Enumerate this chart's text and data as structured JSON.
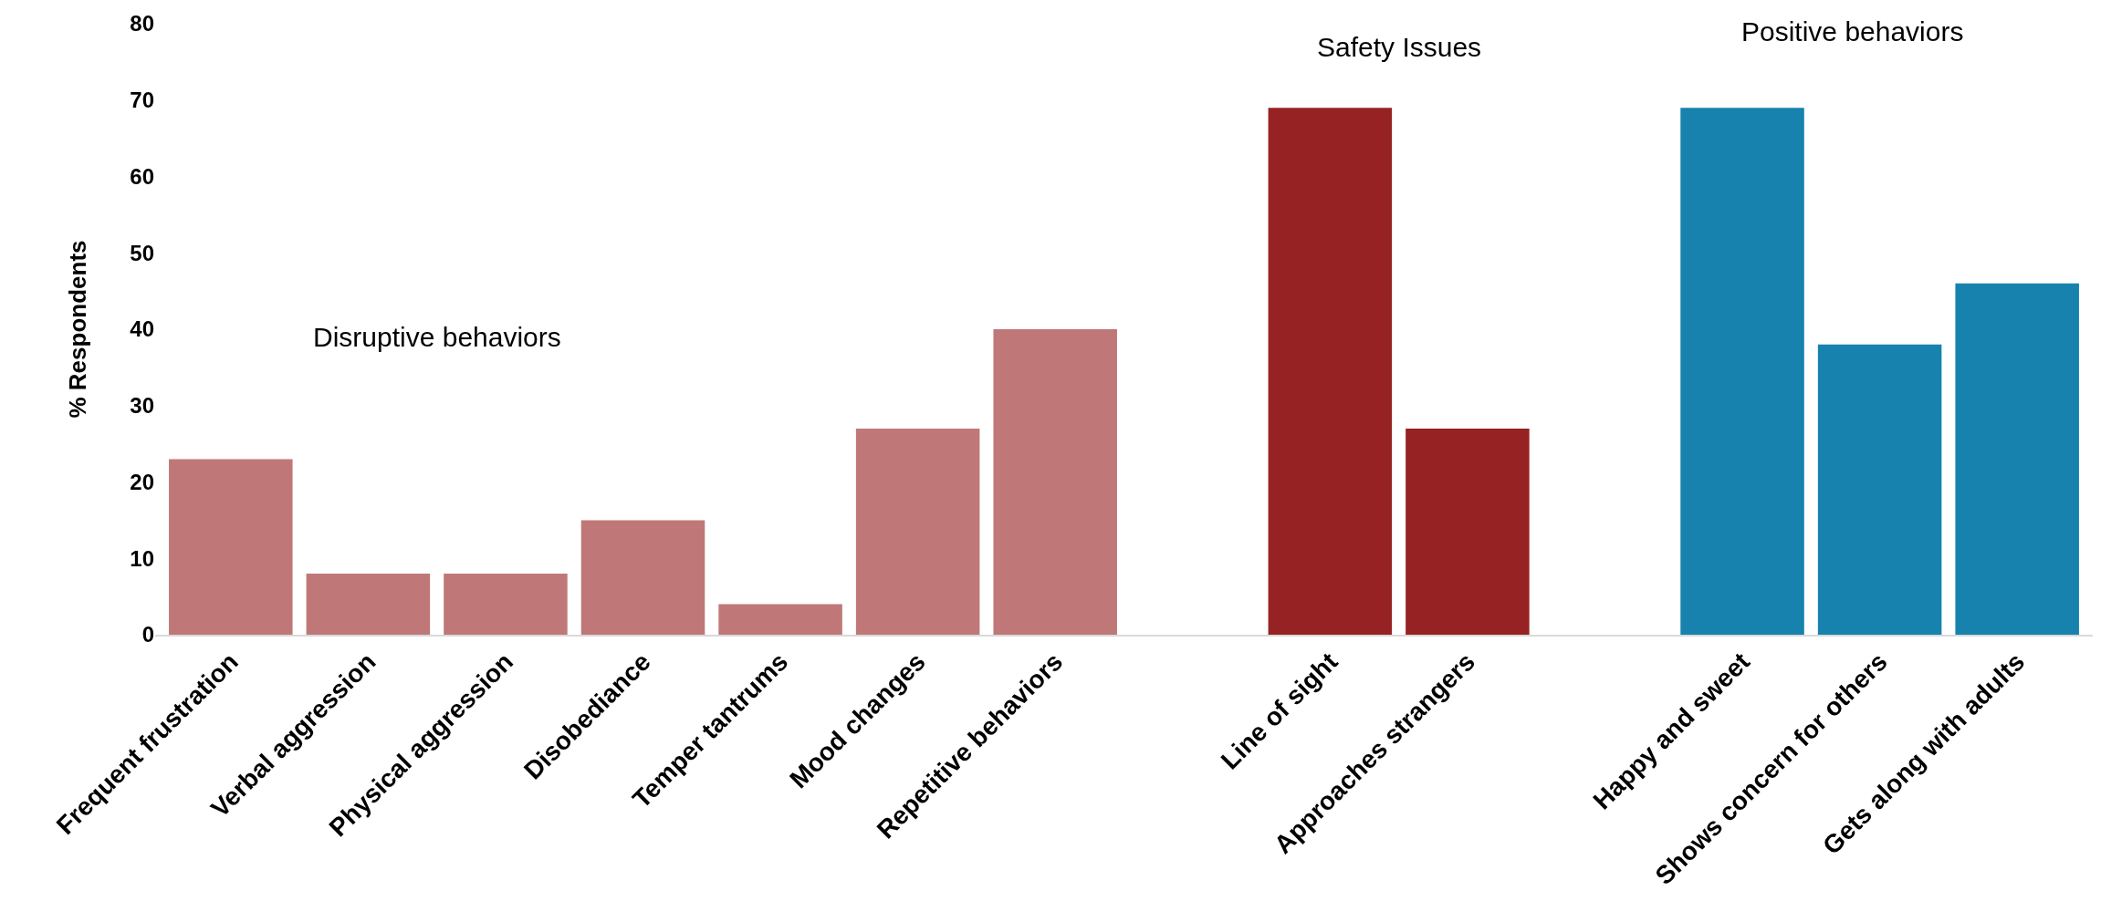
{
  "chart_data": {
    "type": "bar",
    "ylabel": "% Respondents",
    "categories": [
      "Frequent frustration",
      "Verbal aggression",
      "Physical aggression",
      "Disobediance",
      "Temper tantrums",
      "Mood changes",
      "Repetitive behaviors",
      null,
      "Line of sight",
      "Approaches strangers",
      null,
      "Happy and sweet",
      "Shows concern for others",
      "Gets along with adults"
    ],
    "values": [
      23,
      8,
      8,
      15,
      4,
      27,
      40,
      null,
      69,
      27,
      null,
      69,
      38,
      46
    ],
    "colors": [
      "#bf7877",
      "#bf7877",
      "#bf7877",
      "#bf7877",
      "#bf7877",
      "#bf7877",
      "#bf7877",
      null,
      "#962224",
      "#962224",
      null,
      "#1782ae",
      "#1782ae",
      "#1782ae"
    ],
    "ylim": [
      0,
      80
    ],
    "yticks": [
      0,
      10,
      20,
      30,
      40,
      50,
      60,
      70,
      80
    ],
    "annotations": [
      "Disruptive behaviors",
      "Safety Issues",
      "Positive behaviors"
    ]
  }
}
